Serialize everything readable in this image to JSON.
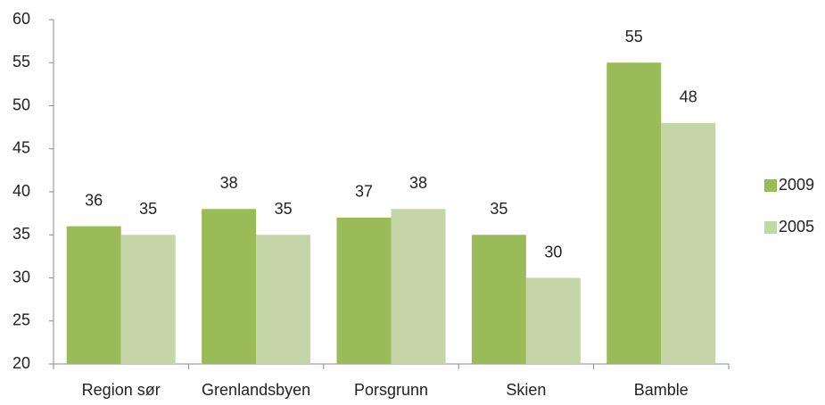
{
  "chart_data": {
    "type": "bar",
    "categories": [
      "Region sør",
      "Grenlandsbyen",
      "Porsgrunn",
      "Skien",
      "Bamble"
    ],
    "series": [
      {
        "name": "2009",
        "color": "#9bbb59",
        "values": [
          36,
          38,
          37,
          35,
          55
        ]
      },
      {
        "name": "2005",
        "color": "#c4d6a8",
        "values": [
          35,
          35,
          38,
          30,
          48
        ]
      }
    ],
    "ylim": [
      20,
      60
    ],
    "yticks": [
      20,
      25,
      30,
      35,
      40,
      45,
      50,
      55,
      60
    ],
    "legend": "right",
    "grid": false
  }
}
